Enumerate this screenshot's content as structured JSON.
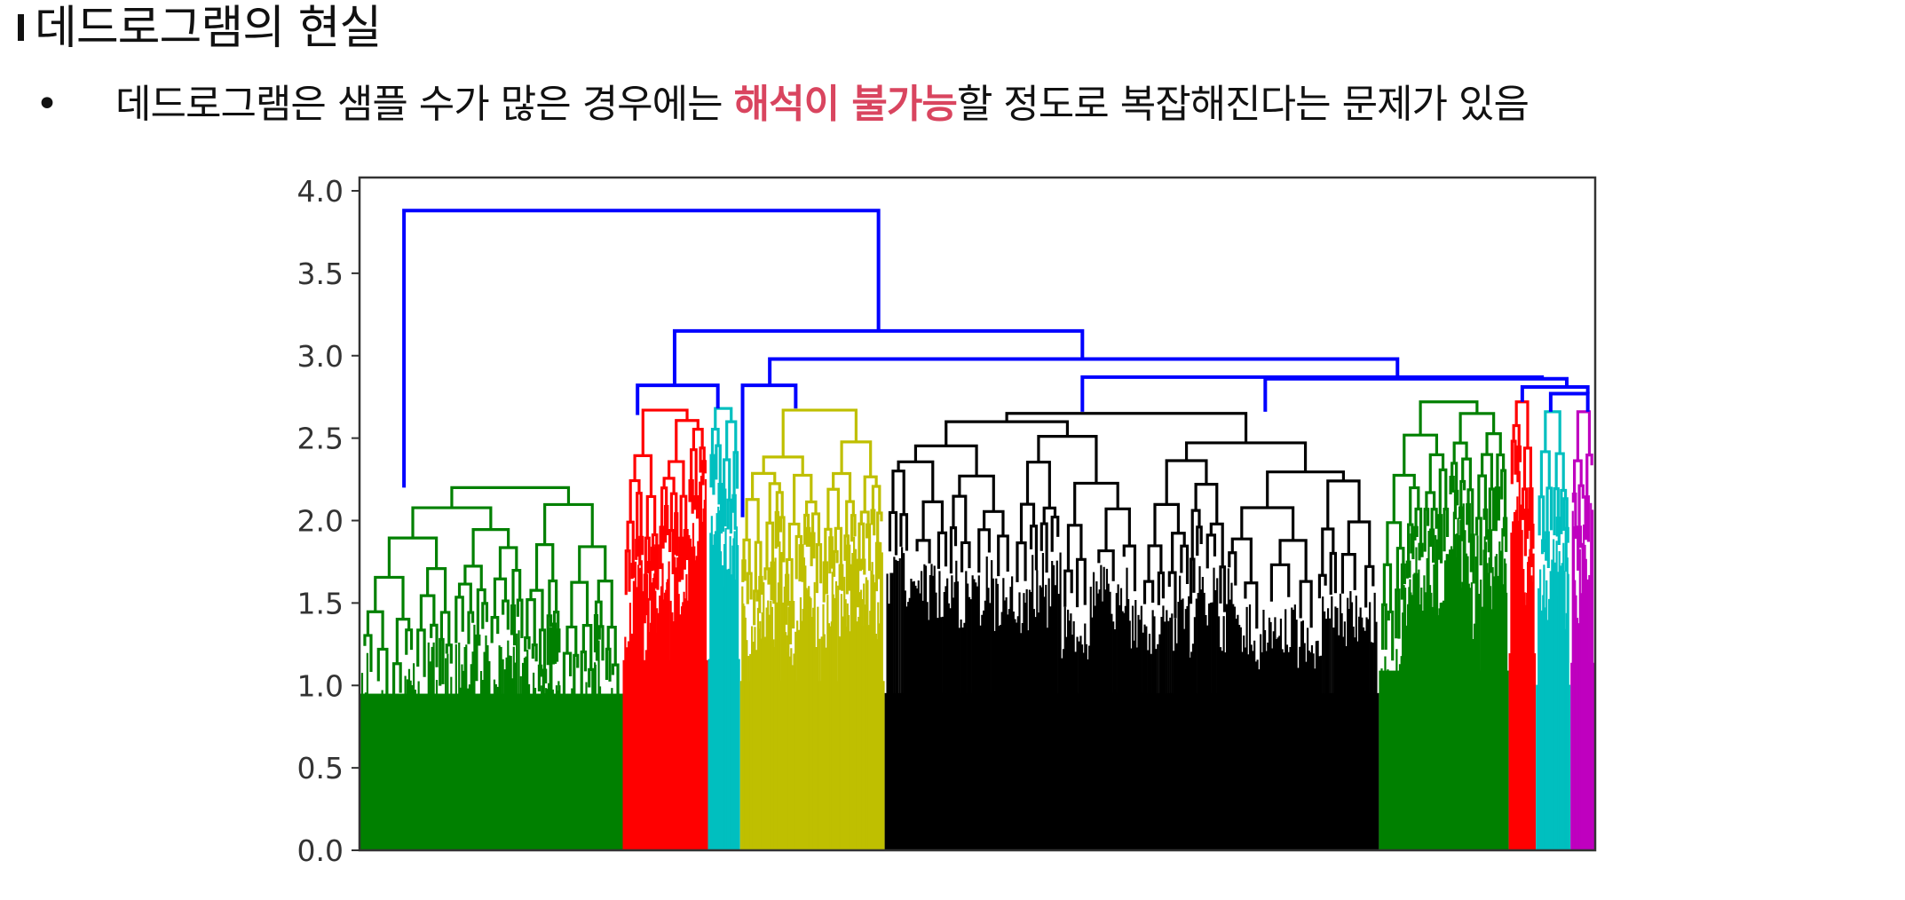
{
  "slide": {
    "title": "데드로그램의 현실",
    "bullet_symbol": "•",
    "bullet_before": "데드로그램은 샘플 수가 많은 경우에는 ",
    "bullet_highlight": "해석이 불가능",
    "bullet_after": "할 정도로 복잡해진다는 문제가 있음",
    "highlight_color": "#d9455f"
  },
  "chart_data": {
    "type": "dendrogram",
    "title": "",
    "xlabel": "",
    "ylabel": "",
    "ylim": [
      0,
      4.0
    ],
    "y_ticks": [
      "0.0",
      "0.5",
      "1.0",
      "1.5",
      "2.0",
      "2.5",
      "3.0",
      "3.5",
      "4.0"
    ],
    "clusters": [
      {
        "name": "cluster-1",
        "color": "#008000",
        "leaf_start": 0.0,
        "leaf_end": 21.3,
        "height": 2.2
      },
      {
        "name": "cluster-2",
        "color": "#ff0000",
        "leaf_start": 21.3,
        "leaf_end": 28.2,
        "height": 2.67
      },
      {
        "name": "cluster-3",
        "color": "#00bfbf",
        "leaf_start": 28.2,
        "leaf_end": 30.8,
        "height": 2.68
      },
      {
        "name": "cluster-4",
        "color": "#bfbf00",
        "leaf_start": 30.8,
        "leaf_end": 42.5,
        "height": 2.67
      },
      {
        "name": "cluster-5",
        "color": "#000000",
        "leaf_start": 42.5,
        "leaf_end": 82.5,
        "height": 2.65
      },
      {
        "name": "cluster-6",
        "color": "#008000",
        "leaf_start": 82.5,
        "leaf_end": 93.0,
        "height": 2.72
      },
      {
        "name": "cluster-7",
        "color": "#ff0000",
        "leaf_start": 93.0,
        "leaf_end": 95.2,
        "height": 2.72
      },
      {
        "name": "cluster-8",
        "color": "#00bfbf",
        "leaf_start": 95.2,
        "leaf_end": 98.0,
        "height": 2.66
      },
      {
        "name": "cluster-9",
        "color": "#bf00bf",
        "leaf_start": 98.0,
        "leaf_end": 100.0,
        "height": 2.66
      }
    ],
    "links": [
      {
        "left": 3.6,
        "right": 42.0,
        "height": 3.88,
        "left_from": 2.2,
        "right_from": 3.15
      },
      {
        "left": 25.5,
        "right": 58.5,
        "height": 3.15,
        "left_from": 2.82,
        "right_from": 2.98
      },
      {
        "left": 22.5,
        "right": 29.0,
        "height": 2.82,
        "left_from": 2.64,
        "right_from": 2.68
      },
      {
        "left": 33.2,
        "right": 84.0,
        "height": 2.98,
        "left_from": 2.82,
        "right_from": 2.87
      },
      {
        "left": 31.0,
        "right": 35.3,
        "height": 2.82,
        "left_from": 2.02,
        "right_from": 2.68
      },
      {
        "left": 58.5,
        "right": 95.7,
        "height": 2.87,
        "left_from": 2.66,
        "right_from": 2.86
      },
      {
        "left": 73.3,
        "right": 97.7,
        "height": 2.86,
        "left_from": 2.66,
        "right_from": 2.81
      },
      {
        "left": 94.1,
        "right": 99.4,
        "height": 2.81,
        "left_from": 2.72,
        "right_from": 2.77
      },
      {
        "left": 96.4,
        "right": 99.4,
        "height": 2.77,
        "left_from": 2.66,
        "right_from": 2.66
      }
    ],
    "cluster_colors": {
      "above_threshold": "#0000ff"
    }
  }
}
